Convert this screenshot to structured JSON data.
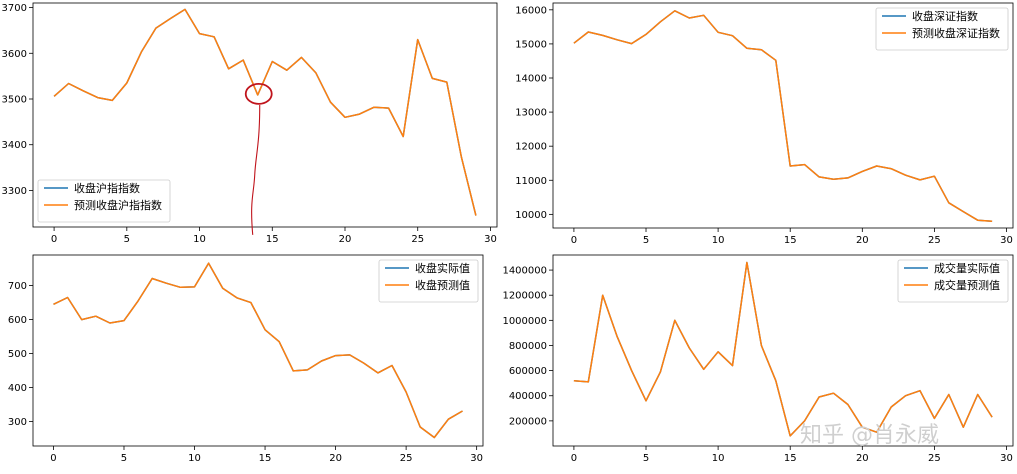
{
  "colors": {
    "actual": "#1f77b4",
    "predicted": "#ff7f0e",
    "annotation": "#c0141c"
  },
  "watermark": "知乎 @肖永威",
  "chart_data": [
    {
      "type": "line",
      "x": [
        0,
        1,
        2,
        3,
        4,
        5,
        6,
        7,
        8,
        9,
        10,
        11,
        12,
        13,
        14,
        15,
        16,
        17,
        18,
        19,
        20,
        21,
        22,
        23,
        24,
        25,
        26,
        27,
        28,
        29
      ],
      "xlim": [
        -1.45,
        30.45
      ],
      "ylim": [
        3220,
        3710
      ],
      "xticks": [
        0,
        5,
        10,
        15,
        20,
        25,
        30
      ],
      "yticks": [
        3300,
        3400,
        3500,
        3600,
        3700
      ],
      "legend_position": "lower left",
      "series": [
        {
          "name": "收盘沪指指数",
          "color": "actual",
          "values": [
            3506,
            3534,
            3518,
            3503,
            3497,
            3535,
            3603,
            3655,
            3676,
            3696,
            3643,
            3636,
            3566,
            3585,
            3509,
            3582,
            3563,
            3591,
            3557,
            3493,
            3460,
            3467,
            3482,
            3480,
            3418,
            3630,
            3545,
            3537,
            3373,
            3245
          ]
        },
        {
          "name": "预测收盘沪指指数",
          "color": "predicted",
          "values": [
            3506,
            3534,
            3518,
            3503,
            3497,
            3535,
            3603,
            3655,
            3676,
            3696,
            3643,
            3636,
            3566,
            3585,
            3509,
            3582,
            3563,
            3591,
            3557,
            3493,
            3460,
            3467,
            3482,
            3480,
            3418,
            3630,
            3545,
            3537,
            3373,
            3245
          ]
        }
      ],
      "annotation": {
        "type": "circle-with-arrow",
        "x": 14,
        "y": 3509
      }
    },
    {
      "type": "line",
      "x": [
        0,
        1,
        2,
        3,
        4,
        5,
        6,
        7,
        8,
        9,
        10,
        11,
        12,
        13,
        14,
        15,
        16,
        17,
        18,
        19,
        20,
        21,
        22,
        23,
        24,
        25,
        26,
        27,
        28,
        29
      ],
      "xlim": [
        -1.45,
        30.45
      ],
      "ylim": [
        9600,
        16200
      ],
      "xticks": [
        0,
        5,
        10,
        15,
        20,
        25,
        30
      ],
      "yticks": [
        10000,
        11000,
        12000,
        13000,
        14000,
        15000,
        16000
      ],
      "legend_position": "upper right",
      "series": [
        {
          "name": "收盘深证指数",
          "color": "actual",
          "values": [
            15020,
            15350,
            15250,
            15120,
            15010,
            15280,
            15650,
            15970,
            15760,
            15840,
            15340,
            15240,
            14870,
            14830,
            14520,
            11420,
            11460,
            11100,
            11030,
            11070,
            11260,
            11420,
            11340,
            11150,
            11010,
            11120,
            10340,
            10080,
            9830,
            9800
          ]
        },
        {
          "name": "预测收盘深证指数",
          "color": "predicted",
          "values": [
            15020,
            15350,
            15250,
            15120,
            15010,
            15280,
            15650,
            15970,
            15760,
            15840,
            15340,
            15240,
            14870,
            14830,
            14520,
            11420,
            11460,
            11100,
            11030,
            11070,
            11260,
            11420,
            11340,
            11150,
            11010,
            11120,
            10340,
            10080,
            9830,
            9800
          ]
        }
      ],
      "xtick_labels_shown": true
    },
    {
      "type": "line",
      "x": [
        0,
        1,
        2,
        3,
        4,
        5,
        6,
        7,
        8,
        9,
        10,
        11,
        12,
        13,
        14,
        15,
        16,
        17,
        18,
        19,
        20,
        21,
        22,
        23,
        24,
        25,
        26,
        27,
        28,
        29
      ],
      "xlim": [
        -1.45,
        30.45
      ],
      "ylim": [
        228,
        790
      ],
      "xticks": [
        0,
        5,
        10,
        15,
        20,
        25,
        30
      ],
      "yticks": [
        300,
        400,
        500,
        600,
        700
      ],
      "legend_position": "upper right",
      "series": [
        {
          "name": "收盘实际值",
          "color": "actual",
          "values": [
            645,
            665,
            600,
            610,
            590,
            597,
            655,
            721,
            707,
            695,
            696,
            766,
            692,
            664,
            650,
            570,
            535,
            449,
            452,
            478,
            494,
            496,
            472,
            443,
            465,
            387,
            284,
            253,
            307,
            331
          ]
        },
        {
          "name": "收盘预测值",
          "color": "predicted",
          "values": [
            645,
            665,
            600,
            610,
            590,
            597,
            655,
            721,
            707,
            695,
            696,
            766,
            692,
            664,
            650,
            570,
            535,
            449,
            452,
            478,
            494,
            496,
            472,
            443,
            465,
            387,
            284,
            253,
            307,
            331
          ]
        }
      ]
    },
    {
      "type": "line",
      "x": [
        0,
        1,
        2,
        3,
        4,
        5,
        6,
        7,
        8,
        9,
        10,
        11,
        12,
        13,
        14,
        15,
        16,
        17,
        18,
        19,
        20,
        21,
        22,
        23,
        24,
        25,
        26,
        27,
        28,
        29
      ],
      "xlim": [
        -1.45,
        30.45
      ],
      "ylim": [
        0,
        1520000
      ],
      "xticks": [
        0,
        5,
        10,
        15,
        20,
        25,
        30
      ],
      "yticks": [
        200000,
        400000,
        600000,
        800000,
        1000000,
        1200000,
        1400000
      ],
      "legend_position": "upper right",
      "series": [
        {
          "name": "成交量实际值",
          "color": "actual",
          "values": [
            520000,
            510000,
            1200000,
            870000,
            600000,
            360000,
            590000,
            1000000,
            780000,
            610000,
            750000,
            640000,
            1460000,
            800000,
            520000,
            80000,
            200000,
            390000,
            420000,
            330000,
            150000,
            110000,
            310000,
            400000,
            440000,
            220000,
            410000,
            150000,
            410000,
            230000
          ]
        },
        {
          "name": "成交量预测值",
          "color": "predicted",
          "values": [
            520000,
            510000,
            1200000,
            870000,
            600000,
            360000,
            590000,
            1000000,
            780000,
            610000,
            750000,
            640000,
            1460000,
            800000,
            520000,
            80000,
            200000,
            390000,
            420000,
            330000,
            150000,
            110000,
            310000,
            400000,
            440000,
            220000,
            410000,
            150000,
            410000,
            230000
          ]
        }
      ]
    }
  ]
}
